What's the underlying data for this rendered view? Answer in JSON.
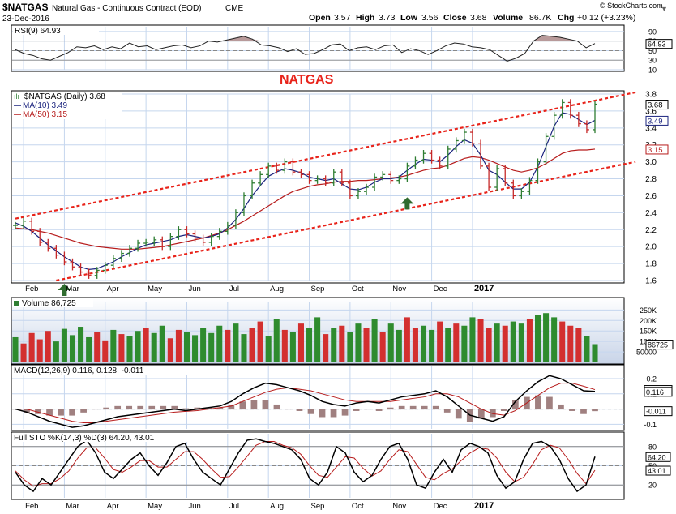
{
  "header": {
    "symbol": "$NATGAS",
    "description": "Natural Gas - Continuous Contract (EOD)",
    "exchange": "CME",
    "date": "23-Dec-2016",
    "open_label": "Open",
    "open": "3.57",
    "high_label": "High",
    "high": "3.73",
    "low_label": "Low",
    "low": "3.56",
    "close_label": "Close",
    "close": "3.68",
    "volume_label": "Volume",
    "volume": "86.7K",
    "chg_label": "Chg",
    "chg": "+0.12 (+3.23%)",
    "watermark": "© StockCharts.com",
    "arrow_glyph": "▼"
  },
  "annotation_text": "NATGAS",
  "chart_data": [
    {
      "type": "line",
      "panel": "rsi",
      "legend": "RSI(9) 64.93",
      "ylim": [
        10,
        100
      ],
      "ticks": [
        "90",
        "70",
        "50",
        "30",
        "10"
      ],
      "tick_values": [
        90,
        70,
        50,
        30,
        10
      ],
      "current_label": "64.93",
      "reference_levels": [
        70,
        50,
        30
      ],
      "series": [
        {
          "name": "RSI(9)",
          "values": [
            52,
            44,
            40,
            33,
            30,
            38,
            46,
            58,
            56,
            60,
            52,
            58,
            54,
            66,
            58,
            60,
            52,
            56,
            60,
            62,
            56,
            60,
            70,
            68,
            72,
            76,
            80,
            74,
            62,
            60,
            56,
            48,
            54,
            42,
            44,
            52,
            62,
            64,
            50,
            56,
            58,
            52,
            60,
            62,
            46,
            54,
            50,
            42,
            50,
            60,
            66,
            64,
            58,
            56,
            52,
            40,
            28,
            34,
            44,
            70,
            82,
            80,
            78,
            74,
            70,
            56,
            64.93
          ]
        }
      ]
    },
    {
      "type": "line",
      "panel": "price",
      "title_overlay": "NATGAS",
      "legend": [
        {
          "label": "$NATGAS (Daily) 3.68",
          "color": "#000000"
        },
        {
          "label": "MA(10) 3.49",
          "color": "#1a237e"
        },
        {
          "label": "MA(50) 3.15",
          "color": "#b71c1c"
        }
      ],
      "x_labels": [
        "Feb",
        "Mar",
        "Apr",
        "May",
        "Jun",
        "Jul",
        "Aug",
        "Sep",
        "Oct",
        "Nov",
        "Dec",
        "2017"
      ],
      "x_label_index": [
        1,
        6,
        11,
        16,
        21,
        26,
        31,
        36,
        41,
        46,
        51,
        56
      ],
      "ylim": [
        1.6,
        3.8
      ],
      "ticks": [
        "3.8",
        "3.6",
        "3.4",
        "3.2",
        "3.0",
        "2.8",
        "2.6",
        "2.4",
        "2.2",
        "2.0",
        "1.8",
        "1.6"
      ],
      "tick_values": [
        3.8,
        3.6,
        3.4,
        3.2,
        3.0,
        2.8,
        2.6,
        2.4,
        2.2,
        2.0,
        1.8,
        1.6
      ],
      "value_tags": [
        {
          "label": "3.68",
          "value": 3.68,
          "color": "#000000"
        },
        {
          "label": "3.49",
          "value": 3.49,
          "color": "#1a237e"
        },
        {
          "label": "3.15",
          "value": 3.15,
          "color": "#b71c1c"
        }
      ],
      "close": [
        2.25,
        2.3,
        2.18,
        2.05,
        1.98,
        1.9,
        1.82,
        1.76,
        1.7,
        1.66,
        1.72,
        1.78,
        1.86,
        1.92,
        1.98,
        2.04,
        2.05,
        2.08,
        2.0,
        2.12,
        2.2,
        2.15,
        2.1,
        2.05,
        2.12,
        2.18,
        2.25,
        2.4,
        2.6,
        2.75,
        2.85,
        2.95,
        2.9,
        3.0,
        2.88,
        2.85,
        2.78,
        2.8,
        2.75,
        2.88,
        2.75,
        2.6,
        2.65,
        2.7,
        2.82,
        2.85,
        2.78,
        2.8,
        2.95,
        3.02,
        3.1,
        3.02,
        2.95,
        3.15,
        3.25,
        3.35,
        3.22,
        2.95,
        2.7,
        2.92,
        2.75,
        2.6,
        2.65,
        2.78,
        3.0,
        3.3,
        3.55,
        3.7,
        3.55,
        3.45,
        3.38,
        3.68
      ],
      "ma10": [
        2.28,
        2.24,
        2.18,
        2.1,
        2.02,
        1.95,
        1.88,
        1.82,
        1.76,
        1.73,
        1.74,
        1.78,
        1.82,
        1.88,
        1.93,
        1.98,
        2.02,
        2.04,
        2.06,
        2.08,
        2.12,
        2.14,
        2.12,
        2.1,
        2.12,
        2.15,
        2.22,
        2.32,
        2.45,
        2.6,
        2.72,
        2.83,
        2.88,
        2.92,
        2.9,
        2.87,
        2.82,
        2.8,
        2.78,
        2.8,
        2.74,
        2.68,
        2.67,
        2.7,
        2.76,
        2.8,
        2.8,
        2.82,
        2.9,
        2.97,
        3.03,
        3.02,
        3.0,
        3.08,
        3.18,
        3.26,
        3.22,
        3.08,
        2.9,
        2.85,
        2.76,
        2.68,
        2.68,
        2.76,
        2.94,
        3.18,
        3.42,
        3.58,
        3.56,
        3.5,
        3.44,
        3.49
      ],
      "ma50": [
        2.22,
        2.21,
        2.2,
        2.18,
        2.16,
        2.13,
        2.1,
        2.07,
        2.04,
        2.02,
        2.0,
        1.99,
        1.98,
        1.97,
        1.97,
        1.97,
        1.98,
        1.99,
        2.0,
        2.02,
        2.04,
        2.06,
        2.08,
        2.1,
        2.13,
        2.16,
        2.2,
        2.25,
        2.3,
        2.36,
        2.42,
        2.48,
        2.54,
        2.6,
        2.65,
        2.68,
        2.71,
        2.73,
        2.74,
        2.76,
        2.77,
        2.77,
        2.78,
        2.78,
        2.79,
        2.8,
        2.81,
        2.82,
        2.84,
        2.87,
        2.9,
        2.92,
        2.93,
        2.96,
        3.0,
        3.04,
        3.06,
        3.05,
        3.02,
        2.98,
        2.94,
        2.9,
        2.88,
        2.9,
        2.93,
        2.98,
        3.04,
        3.1,
        3.13,
        3.14,
        3.14,
        3.15
      ],
      "channel_upper": [
        [
          0,
          2.33
        ],
        [
          72,
          3.82
        ]
      ],
      "channel_lower": [
        [
          5,
          1.6
        ],
        [
          72,
          3.0
        ]
      ],
      "up_arrows_at": [
        [
          6,
          1.6
        ],
        [
          48,
          2.62
        ]
      ]
    },
    {
      "type": "bar",
      "panel": "volume",
      "legend": "Volume 86,725",
      "ylim": [
        0,
        290
      ],
      "units": "thousands",
      "ticks": [
        "250K",
        "200K",
        "150K",
        "100K",
        "50000"
      ],
      "tick_values": [
        250,
        200,
        150,
        100,
        50
      ],
      "current_label": "86725",
      "values": [
        120,
        90,
        140,
        110,
        150,
        100,
        160,
        130,
        170,
        120,
        145,
        105,
        155,
        135,
        125,
        150,
        165,
        140,
        175,
        115,
        155,
        145,
        130,
        165,
        140,
        175,
        155,
        185,
        135,
        165,
        195,
        125,
        205,
        155,
        145,
        185,
        165,
        215,
        135,
        165,
        175,
        145,
        185,
        165,
        205,
        145,
        185,
        155,
        215,
        165,
        175,
        155,
        195,
        165,
        185,
        175,
        215,
        205,
        165,
        185,
        175,
        195,
        185,
        205,
        225,
        235,
        215,
        195,
        175,
        165,
        125,
        87
      ],
      "up": [
        true,
        false,
        false,
        false,
        false,
        true,
        true,
        true,
        true,
        true,
        false,
        false,
        true,
        false,
        true,
        true,
        false,
        true,
        true,
        false,
        false,
        true,
        true,
        true,
        true,
        true,
        false,
        true,
        true,
        false,
        false,
        true,
        true,
        false,
        true,
        false,
        true,
        true,
        false,
        true,
        false,
        true,
        true,
        false,
        true,
        false,
        true,
        true,
        false,
        false,
        true,
        true,
        false,
        true,
        false,
        true,
        true,
        false,
        false,
        true,
        false,
        true,
        true,
        false,
        true,
        true,
        true,
        false,
        false,
        false,
        true,
        true
      ]
    },
    {
      "type": "line",
      "panel": "macd",
      "legend": "MACD(12,26,9) 0.116, 0.128, -0.011",
      "ylim": [
        -0.13,
        0.28
      ],
      "ticks": [
        "0.2",
        "0.1",
        "-0.0",
        "-0.1"
      ],
      "tick_values": [
        0.2,
        0.1,
        0.0,
        -0.1
      ],
      "value_tags": [
        {
          "label": "0.128",
          "value": 0.128
        },
        {
          "label": "0.116",
          "value": 0.116
        },
        {
          "label": "-0.011",
          "value": -0.011
        }
      ],
      "series": [
        {
          "name": "MACD(12,26,9)",
          "values": [
            0.0,
            -0.02,
            -0.05,
            -0.08,
            -0.1,
            -0.12,
            -0.11,
            -0.09,
            -0.07,
            -0.05,
            -0.04,
            -0.03,
            -0.02,
            -0.01,
            0.0,
            -0.01,
            0.0,
            0.01,
            0.02,
            0.05,
            0.1,
            0.14,
            0.17,
            0.16,
            0.14,
            0.12,
            0.09,
            0.05,
            0.03,
            0.02,
            0.04,
            0.05,
            0.04,
            0.06,
            0.08,
            0.09,
            0.1,
            0.12,
            0.08,
            0.02,
            -0.04,
            -0.06,
            -0.08,
            -0.05,
            0.05,
            0.12,
            0.18,
            0.22,
            0.2,
            0.16,
            0.12,
            0.116
          ]
        },
        {
          "name": "signal",
          "values": [
            0.0,
            0.0,
            -0.02,
            -0.04,
            -0.06,
            -0.08,
            -0.09,
            -0.09,
            -0.08,
            -0.07,
            -0.06,
            -0.05,
            -0.04,
            -0.03,
            -0.02,
            -0.015,
            -0.01,
            0.0,
            0.01,
            0.02,
            0.05,
            0.08,
            0.11,
            0.13,
            0.14,
            0.13,
            0.12,
            0.1,
            0.08,
            0.06,
            0.05,
            0.05,
            0.05,
            0.05,
            0.06,
            0.07,
            0.08,
            0.1,
            0.1,
            0.08,
            0.04,
            0.0,
            -0.03,
            -0.04,
            -0.01,
            0.04,
            0.09,
            0.14,
            0.17,
            0.17,
            0.15,
            0.128
          ]
        }
      ],
      "histogram": [
        0.0,
        -0.02,
        -0.03,
        -0.04,
        -0.04,
        -0.04,
        -0.02,
        0.0,
        0.01,
        0.02,
        0.02,
        0.02,
        0.02,
        0.02,
        0.02,
        0.005,
        0.01,
        0.01,
        0.01,
        0.03,
        0.05,
        0.06,
        0.06,
        0.03,
        0.0,
        -0.01,
        -0.03,
        -0.05,
        -0.05,
        -0.04,
        -0.01,
        0.0,
        -0.01,
        0.01,
        0.02,
        0.02,
        0.02,
        0.02,
        -0.02,
        -0.06,
        -0.08,
        -0.06,
        -0.05,
        -0.01,
        0.06,
        0.08,
        0.09,
        0.08,
        0.03,
        -0.01,
        -0.03,
        -0.011
      ]
    },
    {
      "type": "line",
      "panel": "sto",
      "legend": "Full STO %K(14,3) %D(3) 64.20, 43.01",
      "ylim": [
        0,
        100
      ],
      "ticks": [
        "80",
        "50",
        "20"
      ],
      "tick_values": [
        80,
        50,
        20
      ],
      "reference_levels": [
        80,
        50,
        20
      ],
      "value_tags": [
        {
          "label": "64.20",
          "value": 64.2
        },
        {
          "label": "43.01",
          "value": 43.01
        }
      ],
      "x_labels": [
        "Feb",
        "Mar",
        "Apr",
        "May",
        "Jun",
        "Jul",
        "Aug",
        "Sep",
        "Oct",
        "Nov",
        "Dec",
        "2017"
      ],
      "x_label_index": [
        1,
        6,
        11,
        16,
        21,
        26,
        31,
        36,
        41,
        46,
        51,
        56
      ],
      "series": [
        {
          "name": "%K(14,3)",
          "values": [
            40,
            20,
            10,
            30,
            20,
            40,
            60,
            80,
            90,
            70,
            40,
            30,
            45,
            60,
            70,
            50,
            35,
            55,
            80,
            85,
            60,
            40,
            30,
            20,
            45,
            70,
            90,
            92,
            88,
            85,
            80,
            75,
            60,
            30,
            20,
            40,
            80,
            70,
            40,
            25,
            35,
            60,
            80,
            85,
            60,
            20,
            15,
            40,
            60,
            40,
            75,
            85,
            80,
            70,
            35,
            15,
            25,
            60,
            85,
            88,
            80,
            60,
            30,
            10,
            20,
            64.2
          ]
        },
        {
          "name": "%D(3)",
          "values": [
            42,
            28,
            18,
            22,
            22,
            30,
            42,
            62,
            78,
            78,
            62,
            44,
            40,
            48,
            58,
            58,
            48,
            48,
            60,
            72,
            72,
            60,
            45,
            32,
            33,
            48,
            65,
            82,
            88,
            88,
            82,
            78,
            68,
            50,
            35,
            32,
            48,
            64,
            62,
            46,
            34,
            42,
            60,
            75,
            72,
            52,
            32,
            28,
            38,
            45,
            58,
            70,
            78,
            76,
            62,
            40,
            25,
            32,
            52,
            75,
            82,
            78,
            60,
            38,
            22,
            43.01
          ]
        }
      ]
    }
  ]
}
